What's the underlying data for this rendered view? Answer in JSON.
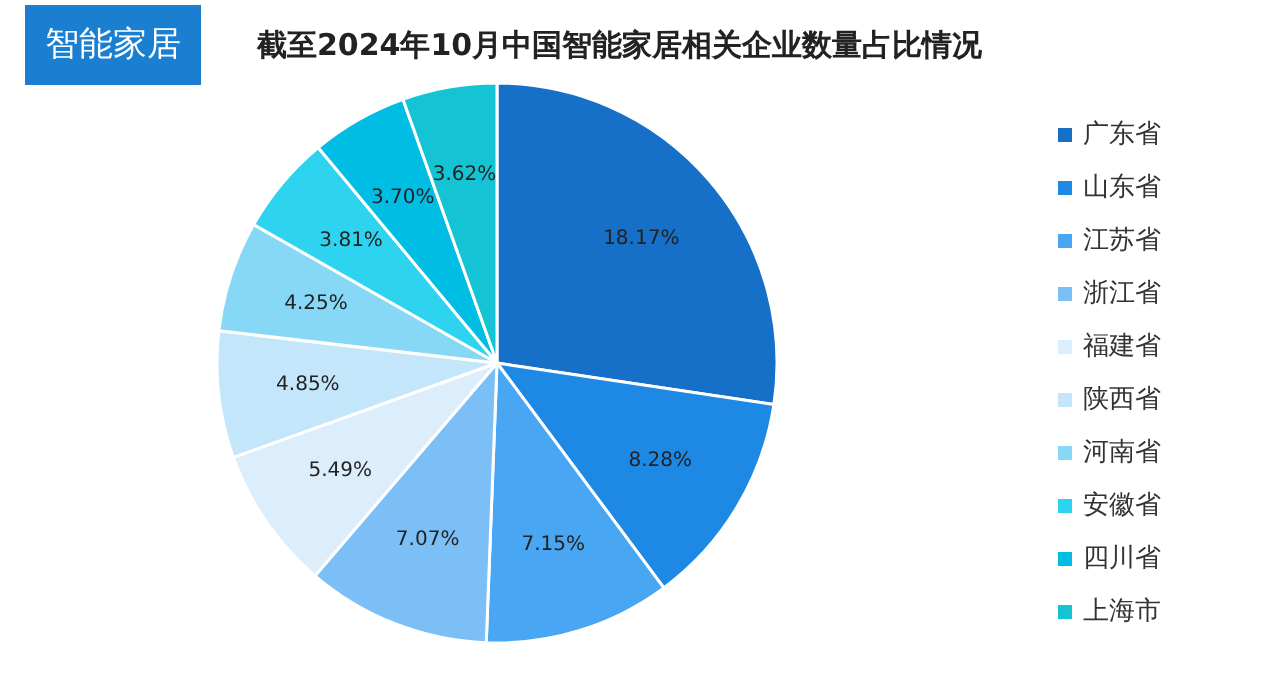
{
  "chart_data": {
    "type": "pie",
    "title": "截至2024年10月中国智能家居相关企业数量占比情况",
    "annotations": [
      "智能家居"
    ],
    "categories": [
      "广东省",
      "山东省",
      "江苏省",
      "浙江省",
      "福建省",
      "陕西省",
      "河南省",
      "安徽省",
      "四川省",
      "上海市"
    ],
    "values": [
      18.17,
      8.28,
      7.15,
      7.07,
      5.49,
      4.85,
      4.25,
      3.81,
      3.7,
      3.62
    ],
    "colors": [
      "#1770c8",
      "#1e88e5",
      "#48a6f2",
      "#7cbff7",
      "#dcedfb",
      "#c4e6fa",
      "#86d8f6",
      "#2ed4ef",
      "#00bde3",
      "#14c3d4"
    ],
    "value_labels": [
      "18.17%",
      "8.28%",
      "7.15%",
      "7.07%",
      "5.49%",
      "4.85%",
      "4.25%",
      "3.81%",
      "3.70%",
      "3.62%"
    ],
    "legend": "right"
  }
}
